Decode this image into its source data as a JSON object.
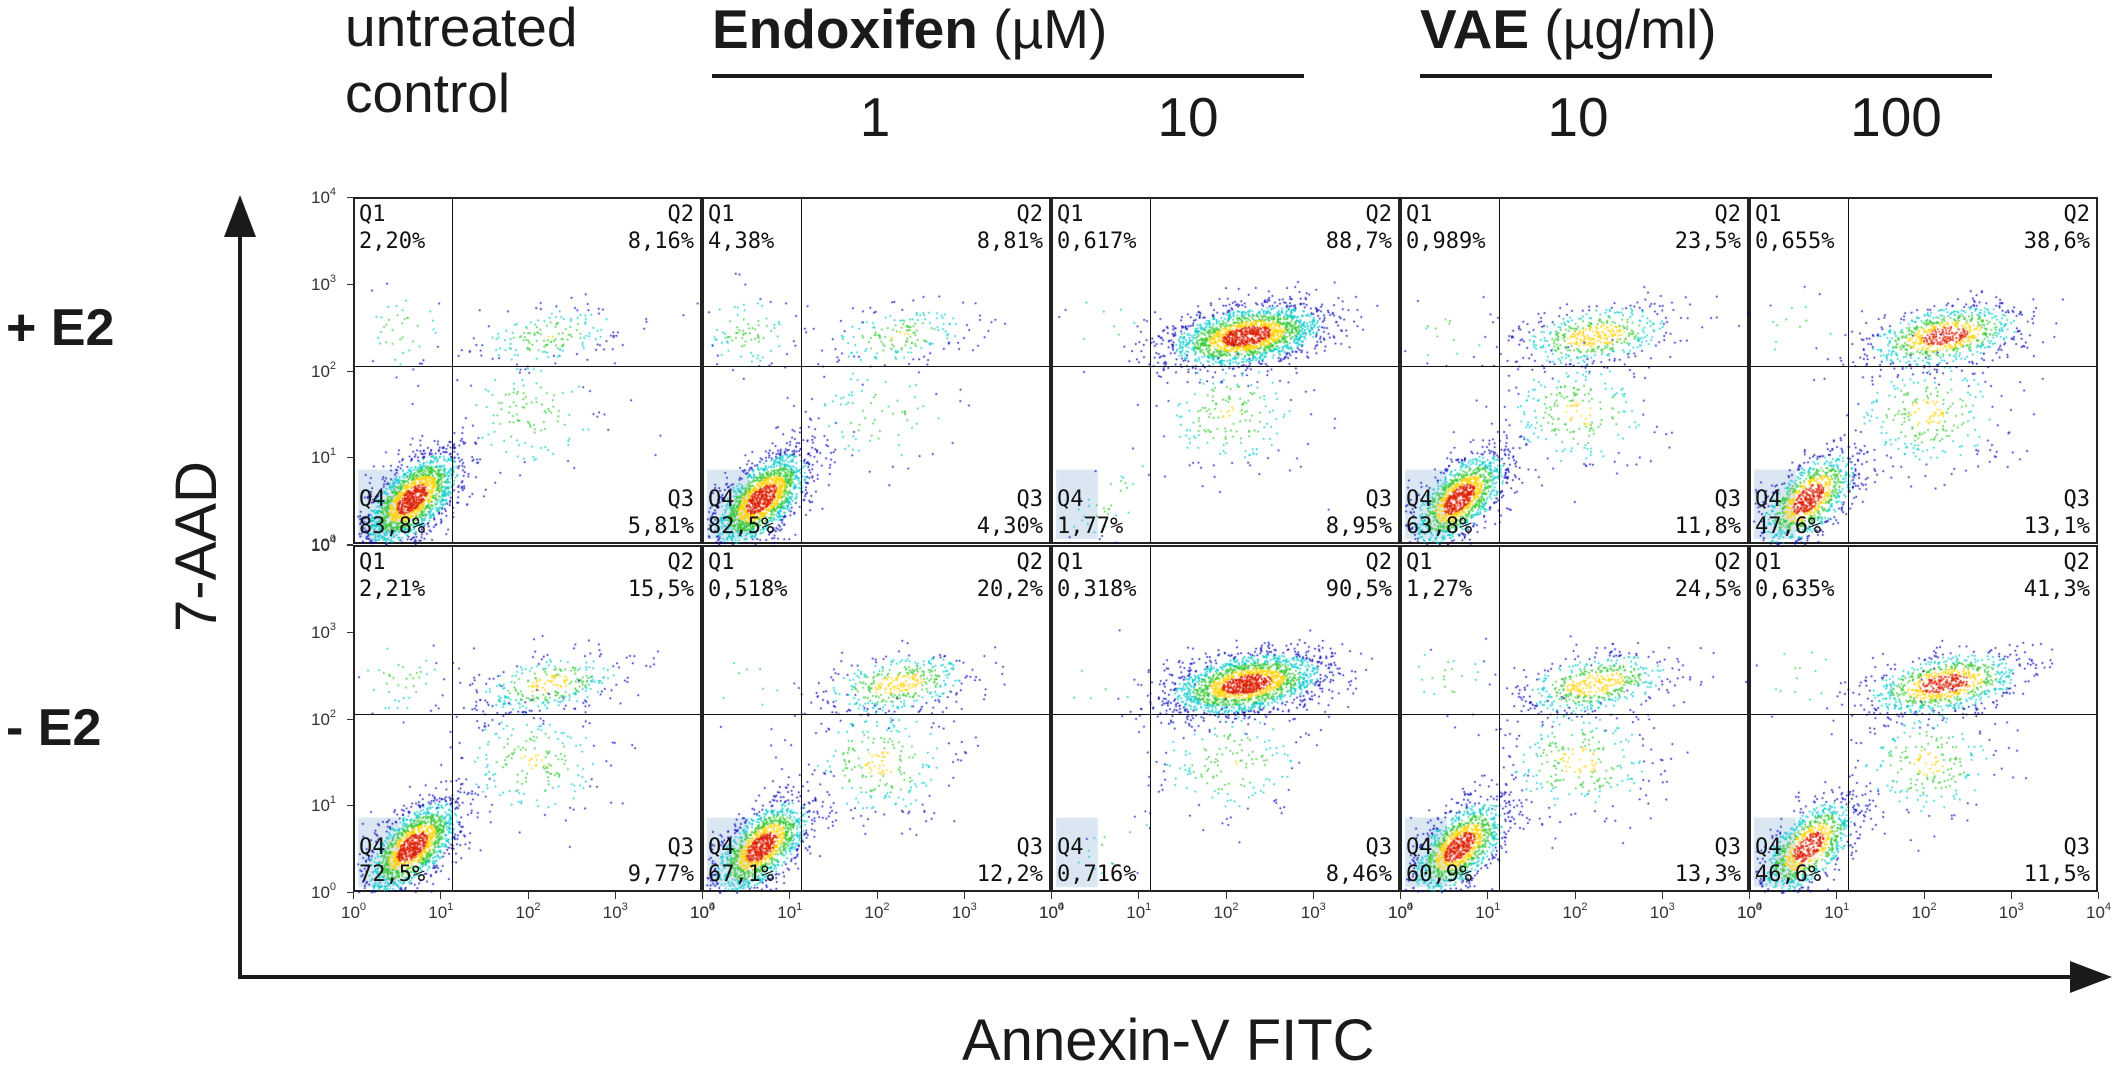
{
  "header": {
    "untreated_line1": "untreated",
    "untreated_line2": "control",
    "endoxifen_name": "Endoxifen",
    "endoxifen_unit": " (µM)",
    "vae_name": "VAE",
    "vae_unit": " (µg/ml)",
    "concentrations": [
      "1",
      "10",
      "10",
      "100"
    ]
  },
  "row_labels": [
    "+ E2",
    "- E2"
  ],
  "axes": {
    "y_label": "7-AAD",
    "x_label": "Annexin-V FITC",
    "tick_base": "10",
    "tick_exponents": [
      "0",
      "1",
      "2",
      "3",
      "4"
    ]
  },
  "colors": {
    "density_low": "#0000b4",
    "density_mid": "#00c8c8",
    "density_mid2": "#32c832",
    "density_high": "#ffd200",
    "density_peak": "#dc1e00",
    "faint_negative": "#bcd4ea",
    "axis": "#1a1a1a"
  },
  "chart_data": {
    "type": "scatter",
    "plot_type": "flow cytometry density dot plot (quadrant gated)",
    "x_scale": "log",
    "y_scale": "log",
    "xlim": [
      1,
      10000
    ],
    "ylim": [
      1,
      10000
    ],
    "gates": {
      "x": 13,
      "y": 120
    },
    "quadrant_names": [
      "Q1",
      "Q2",
      "Q3",
      "Q4"
    ],
    "rows": [
      "+ E2",
      "- E2"
    ],
    "columns": [
      "untreated control",
      "Endoxifen 1 µM",
      "Endoxifen 10 µM",
      "VAE 10 µg/ml",
      "VAE 100 µg/ml"
    ],
    "panels": [
      {
        "row": "+ E2",
        "column": "untreated control",
        "Q1": "2,20%",
        "Q2": "8,16%",
        "Q3": "5,81%",
        "Q4": "83,8%"
      },
      {
        "row": "+ E2",
        "column": "Endoxifen 1 µM",
        "Q1": "4,38%",
        "Q2": "8,81%",
        "Q3": "4,30%",
        "Q4": "82,5%"
      },
      {
        "row": "+ E2",
        "column": "Endoxifen 10 µM",
        "Q1": "0,617%",
        "Q2": "88,7%",
        "Q3": "8,95%",
        "Q4": "1,77%"
      },
      {
        "row": "+ E2",
        "column": "VAE 10 µg/ml",
        "Q1": "0,989%",
        "Q2": "23,5%",
        "Q3": "11,8%",
        "Q4": "63,8%"
      },
      {
        "row": "+ E2",
        "column": "VAE 100 µg/ml",
        "Q1": "0,655%",
        "Q2": "38,6%",
        "Q3": "13,1%",
        "Q4": "47,6%"
      },
      {
        "row": "- E2",
        "column": "untreated control",
        "Q1": "2,21%",
        "Q2": "15,5%",
        "Q3": "9,77%",
        "Q4": "72,5%"
      },
      {
        "row": "- E2",
        "column": "Endoxifen 1 µM",
        "Q1": "0,518%",
        "Q2": "20,2%",
        "Q3": "12,2%",
        "Q4": "67,1%"
      },
      {
        "row": "- E2",
        "column": "Endoxifen 10 µM",
        "Q1": "0,318%",
        "Q2": "90,5%",
        "Q3": "8,46%",
        "Q4": "0,716%"
      },
      {
        "row": "- E2",
        "column": "VAE 10 µg/ml",
        "Q1": "1,27%",
        "Q2": "24,5%",
        "Q3": "13,3%",
        "Q4": "60,9%"
      },
      {
        "row": "- E2",
        "column": "VAE 100 µg/ml",
        "Q1": "0,635%",
        "Q2": "41,3%",
        "Q3": "11,5%",
        "Q4": "46,6%"
      }
    ]
  }
}
